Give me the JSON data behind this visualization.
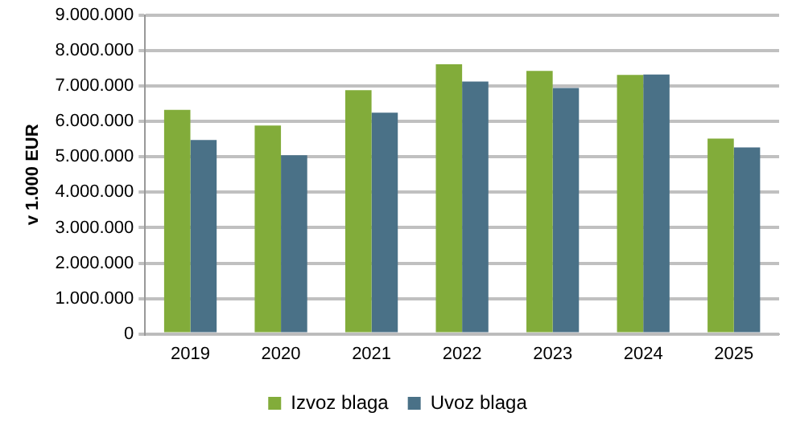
{
  "chart_data": {
    "type": "bar",
    "ylabel": "v 1.000 EUR",
    "categories": [
      "2019",
      "2020",
      "2021",
      "2022",
      "2023",
      "2024",
      "2025"
    ],
    "series": [
      {
        "name": "Izvoz blaga",
        "color": "#82ac3a",
        "values": [
          6330000,
          5890000,
          6890000,
          7620000,
          7430000,
          7320000,
          5520000
        ]
      },
      {
        "name": "Uvoz blaga",
        "color": "#4a7187",
        "values": [
          5480000,
          5050000,
          6250000,
          7130000,
          6950000,
          7330000,
          5270000
        ]
      }
    ],
    "ylim": [
      0,
      9000000
    ],
    "yticks": [
      {
        "value": 0,
        "label": "0"
      },
      {
        "value": 1000000,
        "label": "1.000.000"
      },
      {
        "value": 2000000,
        "label": "2.000.000"
      },
      {
        "value": 3000000,
        "label": "3.000.000"
      },
      {
        "value": 4000000,
        "label": "4.000.000"
      },
      {
        "value": 5000000,
        "label": "5.000.000"
      },
      {
        "value": 6000000,
        "label": "6.000.000"
      },
      {
        "value": 7000000,
        "label": "7.000.000"
      },
      {
        "value": 8000000,
        "label": "8.000.000"
      },
      {
        "value": 9000000,
        "label": "9.000.000"
      }
    ],
    "grid": "y",
    "legend": "bottom"
  }
}
